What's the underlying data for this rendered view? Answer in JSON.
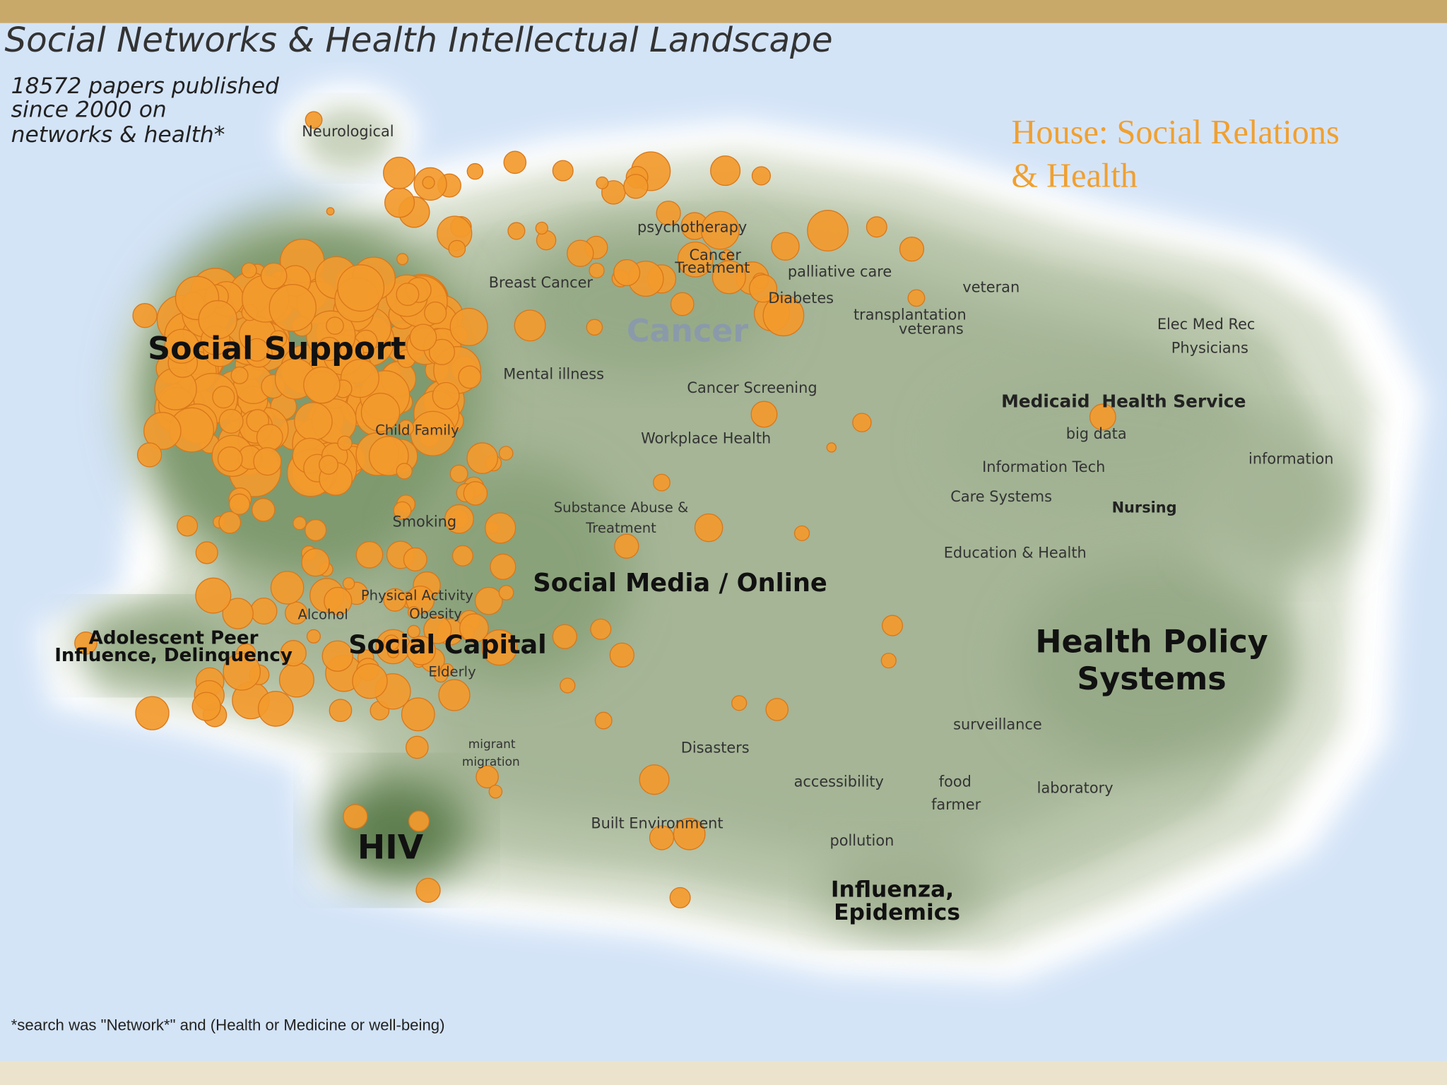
{
  "header": {
    "title": "Social Networks & Health Intellectual Landscape"
  },
  "subtitle": [
    "18572 papers published",
    "since 2000 on",
    "networks & health*"
  ],
  "house_label": [
    "House: Social Relations",
    "& Health"
  ],
  "footnote": "*search was \"Network*\" and (Health or Medicine or well-being)",
  "labels": [
    "Neurological",
    "psychotherapy",
    "Cancer",
    "Treatment",
    "palliative care",
    "Breast Cancer",
    "Diabetes",
    "veteran",
    "transplantation",
    "veterans",
    "Cancer",
    "Elec Med Rec",
    "Physicians",
    "Social Support",
    "Mental illness",
    "Cancer Screening",
    "Medicaid",
    "Health Service",
    "big data",
    "Child Family",
    "Workplace Health",
    "information",
    "Information Tech",
    "Care Systems",
    "Nursing",
    "Substance Abuse &",
    "Treatment",
    "Smoking",
    "Education & Health",
    "Social Media / Online",
    "Physical Activity",
    "Obesity",
    "Alcohol",
    "Adolescent Peer",
    "Influence, Delinquency",
    "Social Capital",
    "Elderly",
    "Health Policy",
    "Systems",
    "surveillance",
    "migrant",
    "migration",
    "Disasters",
    "accessibility",
    "food",
    "laboratory",
    "farmer",
    "Built Environment",
    "pollution",
    "HIV",
    "Influenza,",
    "Epidemics"
  ]
}
